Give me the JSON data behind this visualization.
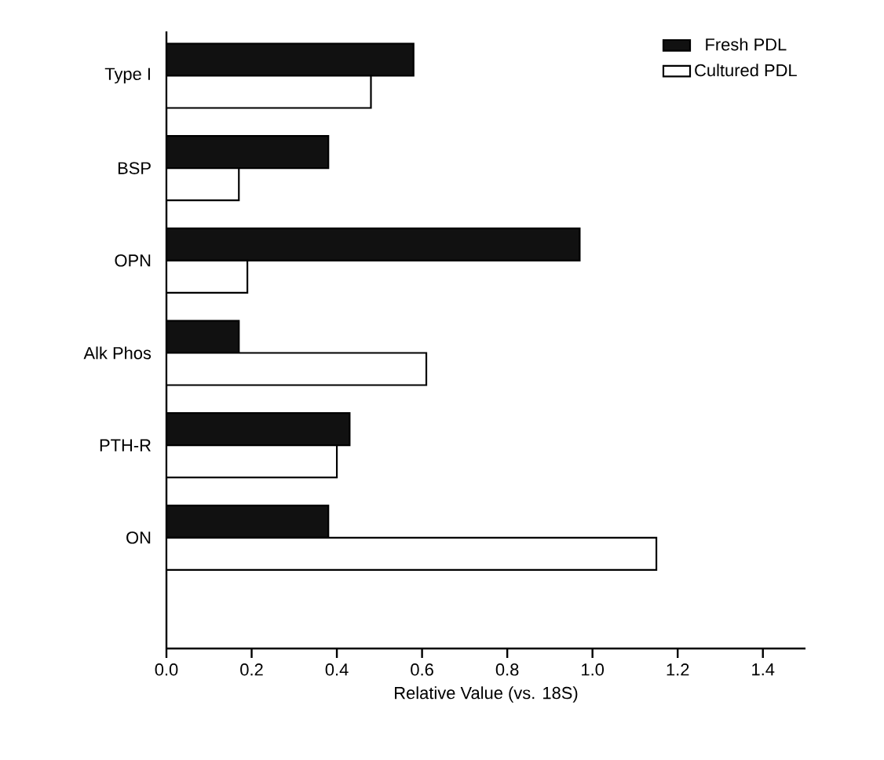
{
  "chart_data": {
    "type": "bar",
    "orientation": "horizontal",
    "xlabel": "Relative Value (vs. 18S)",
    "categories": [
      "Type I",
      "BSP",
      "OPN",
      "Alk Phos",
      "PTH-R",
      "ON"
    ],
    "series": [
      {
        "name": "Fresh PDL",
        "color": "#111111",
        "values": [
          0.58,
          0.38,
          0.97,
          0.17,
          0.43,
          0.38
        ]
      },
      {
        "name": "Cultured PDL",
        "color": "#ffffff",
        "values": [
          0.48,
          0.17,
          0.19,
          0.61,
          0.4,
          1.15
        ]
      }
    ],
    "xlim": [
      0,
      1.5
    ],
    "xticks": [
      {
        "value": 0,
        "label": "0.0"
      },
      0.2,
      0.4,
      0.6,
      0.8,
      {
        "value": 1,
        "label": "1.0"
      },
      1.2,
      1.4
    ],
    "legend": "top right",
    "grid": false
  }
}
